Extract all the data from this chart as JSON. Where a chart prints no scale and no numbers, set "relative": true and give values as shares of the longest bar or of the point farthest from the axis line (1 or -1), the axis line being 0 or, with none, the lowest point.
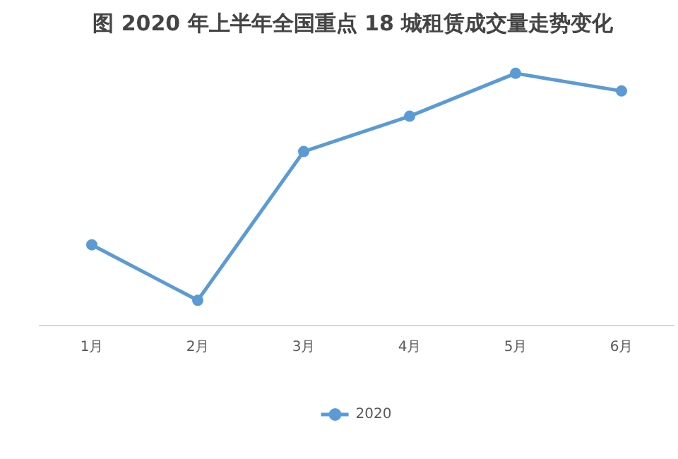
{
  "chart_data": {
    "type": "line",
    "title": "图  2020 年上半年全国重点 18 城租赁成交量走势变化",
    "categories": [
      "1月",
      "2月",
      "3月",
      "4月",
      "5月",
      "6月"
    ],
    "series": [
      {
        "name": "2020",
        "color": "#5b9bd5",
        "values": [
          0.32,
          0.1,
          0.69,
          0.83,
          1,
          0.93
        ]
      }
    ],
    "relative": true,
    "marker": "circle",
    "legend": "bottom"
  }
}
